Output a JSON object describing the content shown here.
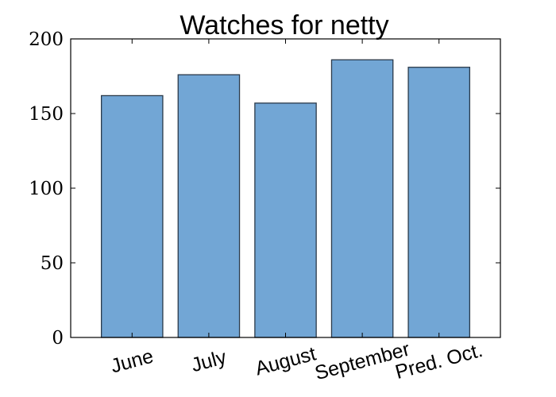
{
  "chart_data": {
    "type": "bar",
    "title": "Watches for netty",
    "categories": [
      "June",
      "July",
      "August",
      "September",
      "Pred. Oct."
    ],
    "values": [
      162,
      176,
      157,
      186,
      181
    ],
    "ylim": [
      0,
      200
    ],
    "yticks": [
      0,
      50,
      100,
      150,
      200
    ],
    "xlabel": "",
    "ylabel": "",
    "grid": false,
    "bar_color": "#72a6d5",
    "edge_color": "#2b3a4a"
  }
}
